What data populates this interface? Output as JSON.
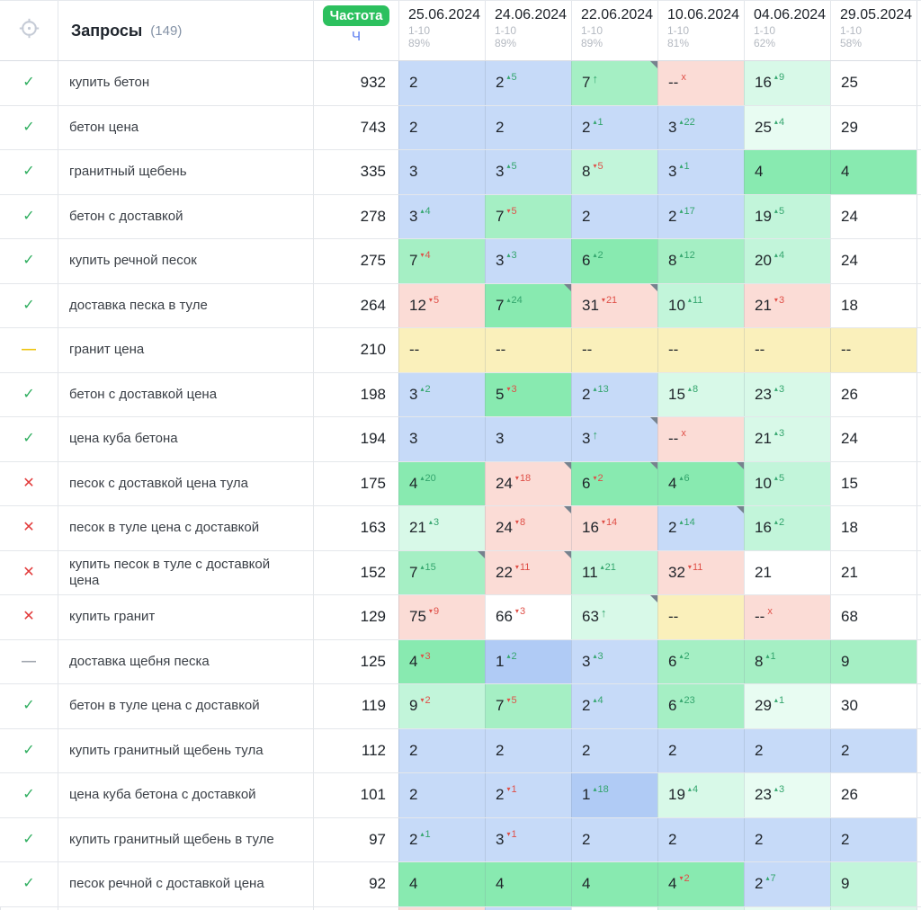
{
  "header": {
    "queries_label": "Запросы",
    "queries_count": "(149)",
    "frequency_badge": "Частота",
    "frequency_sort": "Ч",
    "columns": [
      {
        "date": "25.06.2024",
        "range": "1-10",
        "percent": "89%"
      },
      {
        "date": "24.06.2024",
        "range": "1-10",
        "percent": "89%"
      },
      {
        "date": "22.06.2024",
        "range": "1-10",
        "percent": "89%"
      },
      {
        "date": "10.06.2024",
        "range": "1-10",
        "percent": "81%"
      },
      {
        "date": "04.06.2024",
        "range": "1-10",
        "percent": "62%"
      },
      {
        "date": "29.05.2024",
        "range": "1-10",
        "percent": "58%"
      }
    ]
  },
  "colors": {
    "white": "#ffffff",
    "blue": "#c6daf8",
    "blue2": "#b0cbf5",
    "g1": "#88eab0",
    "g2": "#a5efc4",
    "g3": "#c2f5da",
    "g4": "#d8f9e8",
    "g5": "#e8fcf2",
    "pink": "#fbdcd6",
    "yellow": "#faf0bb",
    "accent_green": "#2cc05e",
    "sort_blue": "#5b7cf0",
    "up_green": "#33a56d",
    "down_red": "#df4f47",
    "check_green": "#2fae5f",
    "cross_red": "#e23b3b",
    "dash_yellow": "#eec40f",
    "dash_gray": "#a0a6ae",
    "corner_gray": "#76828e"
  },
  "rows": [
    {
      "status": "check",
      "query": "купить бетон",
      "freq": "932",
      "cells": [
        {
          "v": "2",
          "bg": "blue"
        },
        {
          "v": "2",
          "bg": "blue",
          "d": "up",
          "ch": "5"
        },
        {
          "v": "7",
          "bg": "g2",
          "d": "upar",
          "c": true
        },
        {
          "v": "--",
          "bg": "pink",
          "d": "x"
        },
        {
          "v": "16",
          "bg": "g4",
          "d": "up",
          "ch": "9"
        },
        {
          "v": "25",
          "bg": "white"
        }
      ]
    },
    {
      "status": "check",
      "query": "бетон цена",
      "freq": "743",
      "cells": [
        {
          "v": "2",
          "bg": "blue"
        },
        {
          "v": "2",
          "bg": "blue"
        },
        {
          "v": "2",
          "bg": "blue",
          "d": "up",
          "ch": "1"
        },
        {
          "v": "3",
          "bg": "blue",
          "d": "up",
          "ch": "22"
        },
        {
          "v": "25",
          "bg": "g5",
          "d": "up",
          "ch": "4"
        },
        {
          "v": "29",
          "bg": "white"
        }
      ]
    },
    {
      "status": "check",
      "query": "гранитный щебень",
      "freq": "335",
      "cells": [
        {
          "v": "3",
          "bg": "blue"
        },
        {
          "v": "3",
          "bg": "blue",
          "d": "up",
          "ch": "5"
        },
        {
          "v": "8",
          "bg": "g3",
          "d": "down",
          "ch": "5"
        },
        {
          "v": "3",
          "bg": "blue",
          "d": "up",
          "ch": "1"
        },
        {
          "v": "4",
          "bg": "g1"
        },
        {
          "v": "4",
          "bg": "g1"
        }
      ]
    },
    {
      "status": "check",
      "query": "бетон с доставкой",
      "freq": "278",
      "cells": [
        {
          "v": "3",
          "bg": "blue",
          "d": "up",
          "ch": "4"
        },
        {
          "v": "7",
          "bg": "g2",
          "d": "down",
          "ch": "5"
        },
        {
          "v": "2",
          "bg": "blue"
        },
        {
          "v": "2",
          "bg": "blue",
          "d": "up",
          "ch": "17"
        },
        {
          "v": "19",
          "bg": "g3",
          "d": "up",
          "ch": "5"
        },
        {
          "v": "24",
          "bg": "white"
        }
      ]
    },
    {
      "status": "check",
      "query": "купить речной песок",
      "freq": "275",
      "cells": [
        {
          "v": "7",
          "bg": "g2",
          "d": "down",
          "ch": "4"
        },
        {
          "v": "3",
          "bg": "blue",
          "d": "up",
          "ch": "3"
        },
        {
          "v": "6",
          "bg": "g1",
          "d": "up",
          "ch": "2"
        },
        {
          "v": "8",
          "bg": "g2",
          "d": "up",
          "ch": "12"
        },
        {
          "v": "20",
          "bg": "g3",
          "d": "up",
          "ch": "4"
        },
        {
          "v": "24",
          "bg": "white"
        }
      ]
    },
    {
      "status": "check",
      "query": "доставка песка в туле",
      "freq": "264",
      "cells": [
        {
          "v": "12",
          "bg": "pink",
          "d": "down",
          "ch": "5"
        },
        {
          "v": "7",
          "bg": "g1",
          "d": "up",
          "ch": "24",
          "c": true
        },
        {
          "v": "31",
          "bg": "pink",
          "d": "down",
          "ch": "21",
          "c": true
        },
        {
          "v": "10",
          "bg": "g3",
          "d": "up",
          "ch": "11"
        },
        {
          "v": "21",
          "bg": "pink",
          "d": "down",
          "ch": "3"
        },
        {
          "v": "18",
          "bg": "white"
        }
      ]
    },
    {
      "status": "dash-yellow",
      "query": "гранит цена",
      "freq": "210",
      "cells": [
        {
          "v": "--",
          "bg": "yellow"
        },
        {
          "v": "--",
          "bg": "yellow"
        },
        {
          "v": "--",
          "bg": "yellow"
        },
        {
          "v": "--",
          "bg": "yellow"
        },
        {
          "v": "--",
          "bg": "yellow"
        },
        {
          "v": "--",
          "bg": "yellow"
        }
      ]
    },
    {
      "status": "check",
      "query": "бетон с доставкой цена",
      "freq": "198",
      "cells": [
        {
          "v": "3",
          "bg": "blue",
          "d": "up",
          "ch": "2"
        },
        {
          "v": "5",
          "bg": "g1",
          "d": "down",
          "ch": "3"
        },
        {
          "v": "2",
          "bg": "blue",
          "d": "up",
          "ch": "13"
        },
        {
          "v": "15",
          "bg": "g4",
          "d": "up",
          "ch": "8"
        },
        {
          "v": "23",
          "bg": "g4",
          "d": "up",
          "ch": "3"
        },
        {
          "v": "26",
          "bg": "white"
        }
      ]
    },
    {
      "status": "check",
      "query": "цена куба бетона",
      "freq": "194",
      "cells": [
        {
          "v": "3",
          "bg": "blue"
        },
        {
          "v": "3",
          "bg": "blue"
        },
        {
          "v": "3",
          "bg": "blue",
          "d": "upar",
          "c": true
        },
        {
          "v": "--",
          "bg": "pink",
          "d": "x"
        },
        {
          "v": "21",
          "bg": "g4",
          "d": "up",
          "ch": "3"
        },
        {
          "v": "24",
          "bg": "white"
        }
      ]
    },
    {
      "status": "cross",
      "query": "песок с доставкой цена тула",
      "freq": "175",
      "cells": [
        {
          "v": "4",
          "bg": "g1",
          "d": "up",
          "ch": "20"
        },
        {
          "v": "24",
          "bg": "pink",
          "d": "down",
          "ch": "18",
          "c": true
        },
        {
          "v": "6",
          "bg": "g1",
          "d": "down",
          "ch": "2",
          "c": true
        },
        {
          "v": "4",
          "bg": "g1",
          "d": "up",
          "ch": "6",
          "c": true
        },
        {
          "v": "10",
          "bg": "g3",
          "d": "up",
          "ch": "5"
        },
        {
          "v": "15",
          "bg": "white"
        }
      ]
    },
    {
      "status": "cross",
      "query": "песок в туле цена с доставкой",
      "freq": "163",
      "cells": [
        {
          "v": "21",
          "bg": "g4",
          "d": "up",
          "ch": "3"
        },
        {
          "v": "24",
          "bg": "pink",
          "d": "down",
          "ch": "8",
          "c": true
        },
        {
          "v": "16",
          "bg": "pink",
          "d": "down",
          "ch": "14"
        },
        {
          "v": "2",
          "bg": "blue",
          "d": "up",
          "ch": "14",
          "c": true
        },
        {
          "v": "16",
          "bg": "g3",
          "d": "up",
          "ch": "2"
        },
        {
          "v": "18",
          "bg": "white"
        }
      ]
    },
    {
      "status": "cross",
      "query": "купить песок в туле с доставкой цена",
      "freq": "152",
      "cells": [
        {
          "v": "7",
          "bg": "g2",
          "d": "up",
          "ch": "15",
          "c": true
        },
        {
          "v": "22",
          "bg": "pink",
          "d": "down",
          "ch": "11",
          "c": true
        },
        {
          "v": "11",
          "bg": "g3",
          "d": "up",
          "ch": "21"
        },
        {
          "v": "32",
          "bg": "pink",
          "d": "down",
          "ch": "11"
        },
        {
          "v": "21",
          "bg": "white"
        },
        {
          "v": "21",
          "bg": "white"
        }
      ]
    },
    {
      "status": "cross",
      "query": "купить гранит",
      "freq": "129",
      "cells": [
        {
          "v": "75",
          "bg": "pink",
          "d": "down",
          "ch": "9"
        },
        {
          "v": "66",
          "bg": "white",
          "d": "down",
          "ch": "3"
        },
        {
          "v": "63",
          "bg": "g4",
          "d": "upar",
          "c": true
        },
        {
          "v": "--",
          "bg": "yellow"
        },
        {
          "v": "--",
          "bg": "pink",
          "d": "x"
        },
        {
          "v": "68",
          "bg": "white"
        }
      ]
    },
    {
      "status": "dash-gray",
      "query": "доставка щебня песка",
      "freq": "125",
      "cells": [
        {
          "v": "4",
          "bg": "g1",
          "d": "down",
          "ch": "3"
        },
        {
          "v": "1",
          "bg": "blue2",
          "d": "up",
          "ch": "2"
        },
        {
          "v": "3",
          "bg": "blue",
          "d": "up",
          "ch": "3"
        },
        {
          "v": "6",
          "bg": "g2",
          "d": "up",
          "ch": "2"
        },
        {
          "v": "8",
          "bg": "g2",
          "d": "up",
          "ch": "1"
        },
        {
          "v": "9",
          "bg": "g2"
        }
      ]
    },
    {
      "status": "check",
      "query": "бетон в туле цена с доставкой",
      "freq": "119",
      "cells": [
        {
          "v": "9",
          "bg": "g3",
          "d": "down",
          "ch": "2"
        },
        {
          "v": "7",
          "bg": "g2",
          "d": "down",
          "ch": "5"
        },
        {
          "v": "2",
          "bg": "blue",
          "d": "up",
          "ch": "4"
        },
        {
          "v": "6",
          "bg": "g2",
          "d": "up",
          "ch": "23"
        },
        {
          "v": "29",
          "bg": "g5",
          "d": "up",
          "ch": "1"
        },
        {
          "v": "30",
          "bg": "white"
        }
      ]
    },
    {
      "status": "check",
      "query": "купить гранитный щебень тула",
      "freq": "112",
      "cells": [
        {
          "v": "2",
          "bg": "blue"
        },
        {
          "v": "2",
          "bg": "blue"
        },
        {
          "v": "2",
          "bg": "blue"
        },
        {
          "v": "2",
          "bg": "blue"
        },
        {
          "v": "2",
          "bg": "blue"
        },
        {
          "v": "2",
          "bg": "blue"
        }
      ]
    },
    {
      "status": "check",
      "query": "цена куба бетона с доставкой",
      "freq": "101",
      "cells": [
        {
          "v": "2",
          "bg": "blue"
        },
        {
          "v": "2",
          "bg": "blue",
          "d": "down",
          "ch": "1"
        },
        {
          "v": "1",
          "bg": "blue2",
          "d": "up",
          "ch": "18"
        },
        {
          "v": "19",
          "bg": "g4",
          "d": "up",
          "ch": "4"
        },
        {
          "v": "23",
          "bg": "g5",
          "d": "up",
          "ch": "3"
        },
        {
          "v": "26",
          "bg": "white"
        }
      ]
    },
    {
      "status": "check",
      "query": "купить гранитный щебень в туле",
      "freq": "97",
      "cells": [
        {
          "v": "2",
          "bg": "blue",
          "d": "up",
          "ch": "1"
        },
        {
          "v": "3",
          "bg": "blue",
          "d": "down",
          "ch": "1"
        },
        {
          "v": "2",
          "bg": "blue"
        },
        {
          "v": "2",
          "bg": "blue"
        },
        {
          "v": "2",
          "bg": "blue"
        },
        {
          "v": "2",
          "bg": "blue"
        }
      ]
    },
    {
      "status": "check",
      "query": "песок речной с доставкой цена",
      "freq": "92",
      "cells": [
        {
          "v": "4",
          "bg": "g1"
        },
        {
          "v": "4",
          "bg": "g1"
        },
        {
          "v": "4",
          "bg": "g1"
        },
        {
          "v": "4",
          "bg": "g1",
          "d": "down",
          "ch": "2"
        },
        {
          "v": "2",
          "bg": "blue",
          "d": "up",
          "ch": "7"
        },
        {
          "v": "9",
          "bg": "g3"
        }
      ]
    }
  ],
  "partial_row": {
    "cells": [
      "pink",
      "blue",
      "white",
      "g4",
      "g5",
      "g4"
    ]
  }
}
